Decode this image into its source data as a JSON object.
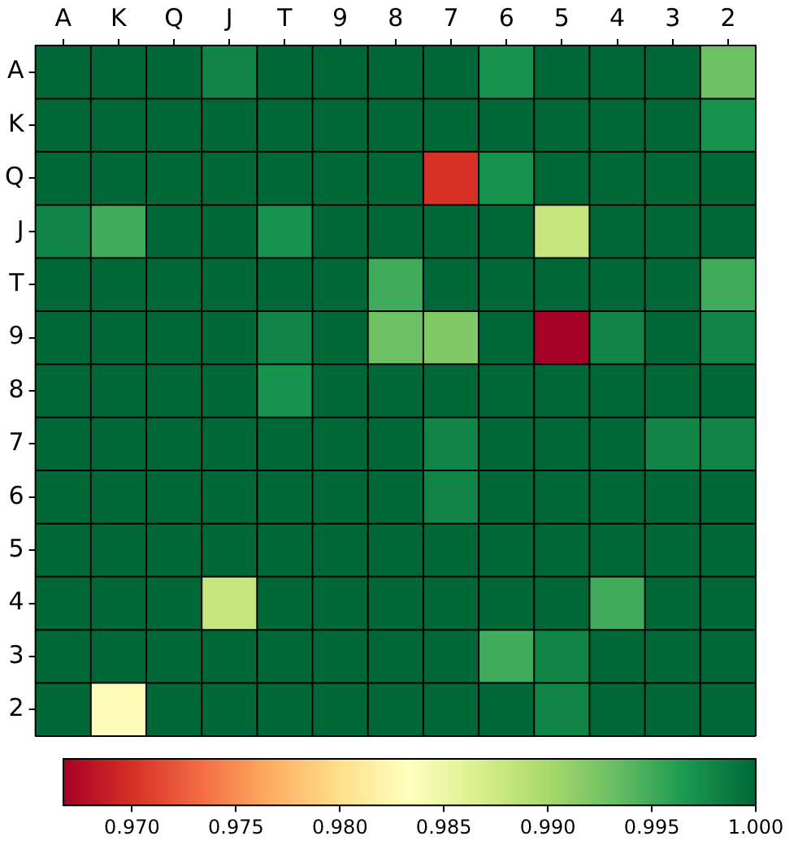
{
  "chart_data": {
    "type": "heatmap",
    "categories": [
      "A",
      "K",
      "Q",
      "J",
      "T",
      "9",
      "8",
      "7",
      "6",
      "5",
      "4",
      "3",
      "2"
    ],
    "y_categories": [
      "A",
      "K",
      "Q",
      "J",
      "T",
      "9",
      "8",
      "7",
      "6",
      "5",
      "4",
      "3",
      "2"
    ],
    "cells": [
      [
        1,
        1,
        1,
        0.998,
        1,
        1,
        1,
        1,
        0.997,
        1,
        1,
        1,
        0.993
      ],
      [
        1,
        1,
        1,
        1,
        1,
        1,
        1,
        1,
        1,
        1,
        1,
        1,
        0.997
      ],
      [
        1,
        1,
        1,
        1,
        1,
        1,
        1,
        0.97,
        0.997,
        1,
        1,
        1,
        1
      ],
      [
        0.998,
        0.995,
        1,
        1,
        0.997,
        1,
        1,
        1,
        1,
        0.988,
        1,
        1,
        1
      ],
      [
        1,
        1,
        1,
        1,
        1,
        1,
        0.995,
        1,
        1,
        1,
        1,
        1,
        0.995
      ],
      [
        1,
        1,
        1,
        1,
        0.998,
        1,
        0.993,
        0.992,
        1,
        0.9667,
        0.998,
        1,
        0.998
      ],
      [
        1,
        1,
        1,
        1,
        0.997,
        1,
        1,
        1,
        1,
        1,
        1,
        1,
        1
      ],
      [
        1,
        1,
        1,
        1,
        1,
        1,
        1,
        0.998,
        1,
        1,
        1,
        0.998,
        0.998
      ],
      [
        1,
        1,
        1,
        1,
        1,
        1,
        1,
        0.998,
        1,
        1,
        1,
        1,
        1
      ],
      [
        1,
        1,
        1,
        1,
        1,
        1,
        1,
        1,
        1,
        1,
        1,
        1,
        1
      ],
      [
        1,
        1,
        1,
        0.988,
        1,
        1,
        1,
        1,
        1,
        1,
        0.995,
        1,
        1
      ],
      [
        1,
        1,
        1,
        1,
        1,
        1,
        1,
        1,
        0.995,
        0.998,
        1,
        1,
        1
      ],
      [
        1,
        0.983,
        1,
        1,
        1,
        1,
        1,
        1,
        1,
        0.998,
        1,
        1,
        1
      ]
    ],
    "clim": [
      0.9667,
      1.0
    ],
    "cticks": [
      {
        "value": 0.97,
        "label": "0.970"
      },
      {
        "value": 0.975,
        "label": "0.975"
      },
      {
        "value": 0.98,
        "label": "0.980"
      },
      {
        "value": 0.985,
        "label": "0.985"
      },
      {
        "value": 0.99,
        "label": "0.990"
      },
      {
        "value": 0.995,
        "label": "0.995"
      },
      {
        "value": 1.0,
        "label": "1.000"
      }
    ]
  }
}
